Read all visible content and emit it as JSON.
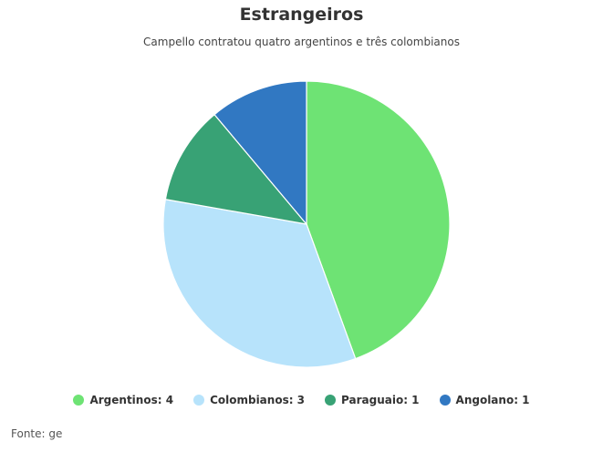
{
  "chart_data": {
    "type": "pie",
    "title": "Estrangeiros",
    "subtitle": "Campello contratou quatro argentinos e três colombianos",
    "slices": [
      {
        "label": "Argentinos",
        "value": 4,
        "color": "#6ee374",
        "legend": "Argentinos: 4"
      },
      {
        "label": "Colombianos",
        "value": 3,
        "color": "#b7e3fb",
        "legend": "Colombianos: 3"
      },
      {
        "label": "Paraguaio",
        "value": 1,
        "color": "#38a275",
        "legend": "Paraguaio: 1"
      },
      {
        "label": "Angolano",
        "value": 1,
        "color": "#3178c2",
        "legend": "Angolano: 1"
      }
    ],
    "legend_position": "bottom",
    "source": "Fonte: ge"
  }
}
